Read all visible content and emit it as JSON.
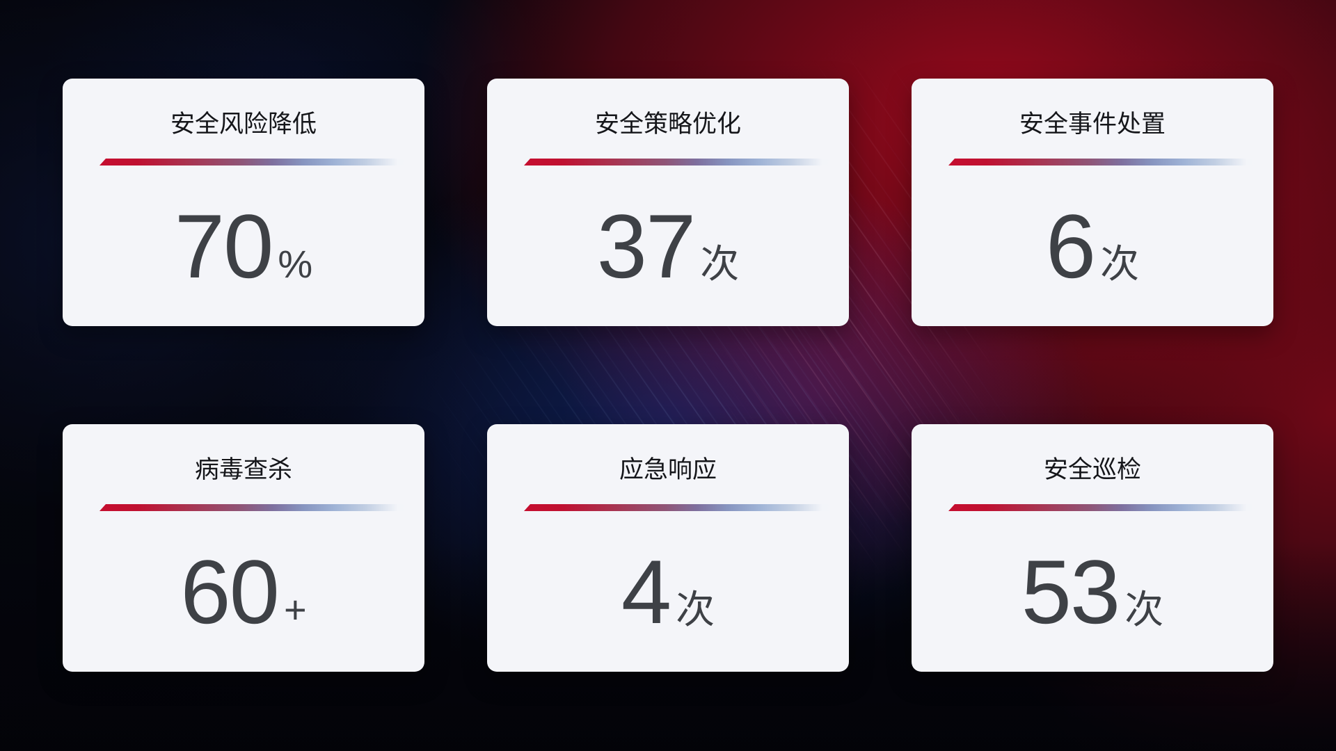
{
  "dashboard": {
    "theme": {
      "card_background": "#f4f5f9",
      "title_color": "#15161a",
      "value_color": "#3e4146",
      "divider_gradient_start": "#c50e2f",
      "divider_gradient_mid": "#8795c0",
      "divider_gradient_end": "#e9eef5",
      "background_dark": "#05060d",
      "background_red": "#9e0a1d",
      "background_blue": "#163087"
    },
    "cards": [
      {
        "title": "安全风险降低",
        "value": "70",
        "unit": "%"
      },
      {
        "title": "安全策略优化",
        "value": "37",
        "unit": "次"
      },
      {
        "title": "安全事件处置",
        "value": "6",
        "unit": "次"
      },
      {
        "title": "病毒查杀",
        "value": "60",
        "unit": "+"
      },
      {
        "title": "应急响应",
        "value": "4",
        "unit": "次"
      },
      {
        "title": "安全巡检",
        "value": "53",
        "unit": "次"
      }
    ]
  }
}
